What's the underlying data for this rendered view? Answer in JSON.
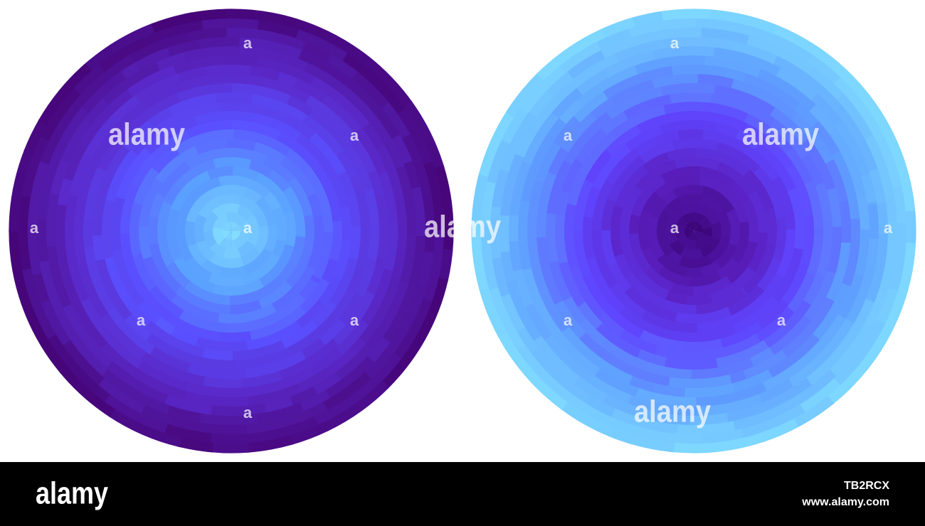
{
  "watermark": {
    "logo": "alamy",
    "letter": "a"
  },
  "footer": {
    "logo": "alamy",
    "image_id": "TB2RCX",
    "url": "www.alamy.com"
  }
}
